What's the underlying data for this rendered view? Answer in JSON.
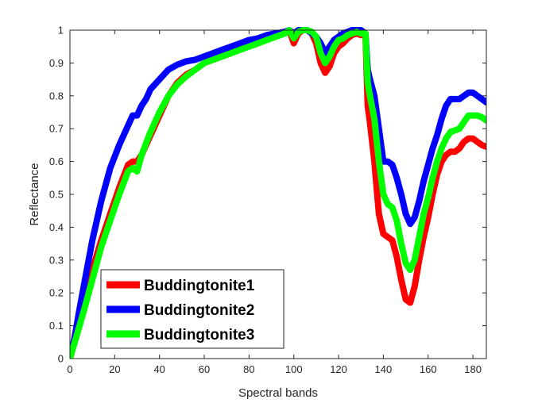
{
  "chart_data": {
    "type": "line",
    "xlabel": "Spectral bands",
    "ylabel": "Reflectance",
    "xlim": [
      0,
      186
    ],
    "ylim": [
      0,
      1
    ],
    "xticks": [
      0,
      20,
      40,
      60,
      80,
      100,
      120,
      140,
      160,
      180
    ],
    "yticks": [
      0,
      0.1,
      0.2,
      0.3,
      0.4,
      0.5,
      0.6,
      0.7,
      0.8,
      0.9,
      1
    ],
    "ytick_labels": [
      "0",
      "0.1",
      "0.2",
      "0.3",
      "0.4",
      "0.5",
      "0.6",
      "0.7",
      "0.8",
      "0.9",
      "1"
    ],
    "grid": false,
    "legend_position": "bottom-left",
    "series": [
      {
        "name": "Buddingtonite1",
        "color": "#ff0000",
        "x": [
          0,
          3,
          6,
          10,
          14,
          18,
          22,
          26,
          28,
          30,
          32,
          36,
          40,
          44,
          48,
          52,
          56,
          60,
          64,
          68,
          72,
          76,
          80,
          84,
          88,
          92,
          96,
          98,
          100,
          102,
          104,
          106,
          108,
          110,
          112,
          114,
          116,
          118,
          120,
          122,
          124,
          126,
          128,
          130,
          132,
          133,
          134,
          136,
          138,
          140,
          142,
          144,
          146,
          148,
          150,
          152,
          154,
          156,
          158,
          160,
          162,
          164,
          166,
          168,
          170,
          172,
          174,
          176,
          178,
          180,
          182,
          184,
          186
        ],
        "y": [
          0.0,
          0.09,
          0.17,
          0.27,
          0.36,
          0.44,
          0.52,
          0.59,
          0.6,
          0.6,
          0.62,
          0.68,
          0.74,
          0.8,
          0.84,
          0.865,
          0.88,
          0.9,
          0.91,
          0.92,
          0.93,
          0.945,
          0.955,
          0.965,
          0.975,
          0.985,
          0.99,
          1.0,
          0.96,
          0.99,
          1.0,
          1.0,
          0.99,
          0.96,
          0.9,
          0.87,
          0.89,
          0.93,
          0.95,
          0.96,
          0.975,
          0.985,
          0.99,
          0.985,
          0.99,
          0.77,
          0.72,
          0.6,
          0.44,
          0.38,
          0.37,
          0.36,
          0.31,
          0.24,
          0.18,
          0.17,
          0.22,
          0.3,
          0.37,
          0.43,
          0.5,
          0.56,
          0.6,
          0.62,
          0.63,
          0.63,
          0.64,
          0.66,
          0.67,
          0.67,
          0.66,
          0.65,
          0.645
        ]
      },
      {
        "name": "Buddingtonite2",
        "color": "#0000ff",
        "x": [
          0,
          2,
          4,
          7,
          10,
          14,
          18,
          22,
          26,
          28,
          30,
          32,
          34,
          36,
          40,
          44,
          48,
          52,
          56,
          60,
          64,
          68,
          72,
          76,
          80,
          84,
          88,
          92,
          96,
          98,
          100,
          102,
          104,
          106,
          108,
          110,
          112,
          114,
          116,
          118,
          120,
          122,
          124,
          126,
          128,
          130,
          132,
          133,
          134,
          136,
          138,
          140,
          142,
          144,
          146,
          148,
          150,
          152,
          154,
          156,
          158,
          160,
          162,
          164,
          166,
          168,
          170,
          172,
          174,
          176,
          178,
          180,
          182,
          184,
          186
        ],
        "y": [
          0.0,
          0.06,
          0.14,
          0.25,
          0.36,
          0.48,
          0.58,
          0.65,
          0.71,
          0.74,
          0.74,
          0.77,
          0.79,
          0.82,
          0.85,
          0.88,
          0.895,
          0.905,
          0.91,
          0.92,
          0.93,
          0.94,
          0.95,
          0.96,
          0.97,
          0.975,
          0.985,
          0.99,
          0.995,
          1.0,
          0.99,
          1.0,
          1.0,
          1.0,
          0.99,
          0.98,
          0.96,
          0.93,
          0.95,
          0.97,
          0.98,
          0.99,
          0.995,
          1.0,
          1.0,
          1.0,
          0.99,
          0.88,
          0.85,
          0.8,
          0.7,
          0.6,
          0.6,
          0.59,
          0.55,
          0.5,
          0.44,
          0.41,
          0.43,
          0.48,
          0.54,
          0.59,
          0.64,
          0.68,
          0.73,
          0.77,
          0.79,
          0.79,
          0.79,
          0.8,
          0.81,
          0.81,
          0.8,
          0.79,
          0.78
        ]
      },
      {
        "name": "Buddingtonite3",
        "color": "#00ff00",
        "x": [
          0,
          3,
          6,
          10,
          14,
          18,
          22,
          26,
          28,
          30,
          32,
          36,
          40,
          44,
          48,
          52,
          56,
          60,
          64,
          68,
          72,
          76,
          80,
          84,
          88,
          92,
          96,
          98,
          100,
          102,
          104,
          106,
          108,
          110,
          112,
          114,
          116,
          118,
          120,
          122,
          124,
          126,
          128,
          130,
          132,
          133,
          134,
          136,
          138,
          140,
          142,
          144,
          146,
          148,
          150,
          152,
          154,
          156,
          158,
          160,
          162,
          164,
          166,
          168,
          170,
          172,
          174,
          176,
          178,
          180,
          182,
          184,
          186
        ],
        "y": [
          0.0,
          0.07,
          0.14,
          0.24,
          0.34,
          0.42,
          0.5,
          0.57,
          0.58,
          0.57,
          0.62,
          0.69,
          0.75,
          0.8,
          0.835,
          0.86,
          0.88,
          0.9,
          0.91,
          0.92,
          0.93,
          0.94,
          0.95,
          0.96,
          0.97,
          0.98,
          0.99,
          1.0,
          0.975,
          0.995,
          1.0,
          1.0,
          0.995,
          0.98,
          0.93,
          0.9,
          0.92,
          0.95,
          0.97,
          0.975,
          0.985,
          0.99,
          0.995,
          0.99,
          0.99,
          0.84,
          0.8,
          0.73,
          0.6,
          0.5,
          0.47,
          0.46,
          0.42,
          0.35,
          0.29,
          0.27,
          0.3,
          0.37,
          0.44,
          0.49,
          0.55,
          0.6,
          0.64,
          0.67,
          0.69,
          0.695,
          0.7,
          0.72,
          0.74,
          0.74,
          0.74,
          0.735,
          0.725
        ]
      }
    ]
  }
}
